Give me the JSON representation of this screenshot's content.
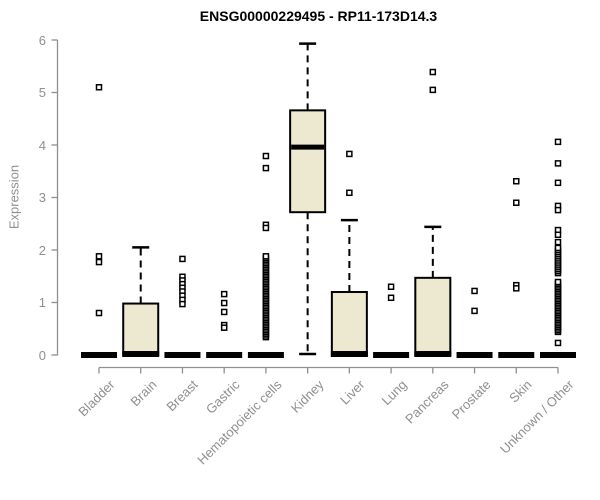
{
  "chart_data": {
    "type": "boxplot",
    "title": "ENSG00000229495 - RP11-173D14.3",
    "xlabel": "",
    "ylabel": "Expression",
    "ylim": [
      0,
      6
    ],
    "yticks": [
      0,
      1,
      2,
      3,
      4,
      5,
      6
    ],
    "grid": false,
    "legend": "none",
    "categories": [
      "Bladder",
      "Brain",
      "Breast",
      "Gastric",
      "Hematopoietic cells",
      "Kidney",
      "Liver",
      "Lung",
      "Pancreas",
      "Prostate",
      "Skin",
      "Unknown / Other"
    ],
    "series": [
      {
        "name": "Bladder",
        "collapsed": true,
        "q1": 0,
        "median": 0,
        "q3": 0,
        "whisker_low": 0,
        "whisker_high": 0,
        "outliers": [
          5.1,
          1.88,
          1.77,
          0.8
        ]
      },
      {
        "name": "Brain",
        "collapsed": false,
        "q1": 0,
        "median": 0.03,
        "q3": 0.98,
        "whisker_low": 0,
        "whisker_high": 2.05,
        "outliers": []
      },
      {
        "name": "Breast",
        "collapsed": true,
        "q1": 0,
        "median": 0,
        "q3": 0,
        "whisker_low": 0,
        "whisker_high": 0,
        "outliers": [
          1.83,
          1.49,
          1.42,
          1.35,
          1.28,
          1.21,
          1.13,
          1.05,
          0.97
        ]
      },
      {
        "name": "Gastric",
        "collapsed": true,
        "q1": 0,
        "median": 0,
        "q3": 0,
        "whisker_low": 0,
        "whisker_high": 0,
        "outliers": [
          1.16,
          0.99,
          0.82,
          0.57,
          0.52
        ]
      },
      {
        "name": "Hematopoietic cells",
        "collapsed": true,
        "q1": 0,
        "median": 0,
        "q3": 0,
        "whisker_low": 0,
        "whisker_high": 0,
        "outliers": [
          3.79,
          3.56,
          2.48,
          2.42
        ],
        "outlier_bands": [
          {
            "min": 0.34,
            "max": 1.88,
            "n": 48
          }
        ]
      },
      {
        "name": "Kidney",
        "collapsed": false,
        "q1": 2.72,
        "median": 3.96,
        "q3": 4.66,
        "whisker_low": 0.02,
        "whisker_high": 5.93,
        "outliers": []
      },
      {
        "name": "Liver",
        "collapsed": false,
        "q1": 0,
        "median": 0.03,
        "q3": 1.2,
        "whisker_low": 0,
        "whisker_high": 2.57,
        "outliers": [
          3.83,
          3.09
        ]
      },
      {
        "name": "Lung",
        "collapsed": true,
        "q1": 0,
        "median": 0,
        "q3": 0,
        "whisker_low": 0,
        "whisker_high": 0,
        "outliers": [
          1.3,
          1.09
        ]
      },
      {
        "name": "Pancreas",
        "collapsed": false,
        "q1": 0,
        "median": 0.03,
        "q3": 1.47,
        "whisker_low": 0,
        "whisker_high": 2.44,
        "outliers": [
          5.39,
          5.05
        ]
      },
      {
        "name": "Prostate",
        "collapsed": true,
        "q1": 0,
        "median": 0,
        "q3": 0,
        "whisker_low": 0,
        "whisker_high": 0,
        "outliers": [
          1.22,
          0.84
        ]
      },
      {
        "name": "Skin",
        "collapsed": true,
        "q1": 0,
        "median": 0,
        "q3": 0,
        "whisker_low": 0,
        "whisker_high": 0,
        "outliers": [
          3.31,
          2.9,
          1.33,
          1.27
        ]
      },
      {
        "name": "Unknown / Other",
        "collapsed": true,
        "q1": 0,
        "median": 0,
        "q3": 0,
        "whisker_low": 0,
        "whisker_high": 0,
        "outliers": [
          4.06,
          3.65,
          3.28,
          2.84,
          2.76,
          2.38,
          2.29,
          2.15,
          0.23
        ],
        "outlier_bands": [
          {
            "min": 1.56,
            "max": 2.04,
            "n": 14
          },
          {
            "min": 0.44,
            "max": 1.39,
            "n": 30
          }
        ]
      }
    ]
  },
  "colors": {
    "box_fill": "#EDE8D0",
    "box_stroke": "#000000",
    "median": "#000000",
    "whisker": "#000000",
    "outlier_fill": "#FFFFFF",
    "outlier_stroke": "#000000",
    "axis": "#8F8F8F",
    "tick_label": "#8F8F8F",
    "title": "#000000",
    "background": "#FFFFFF"
  }
}
